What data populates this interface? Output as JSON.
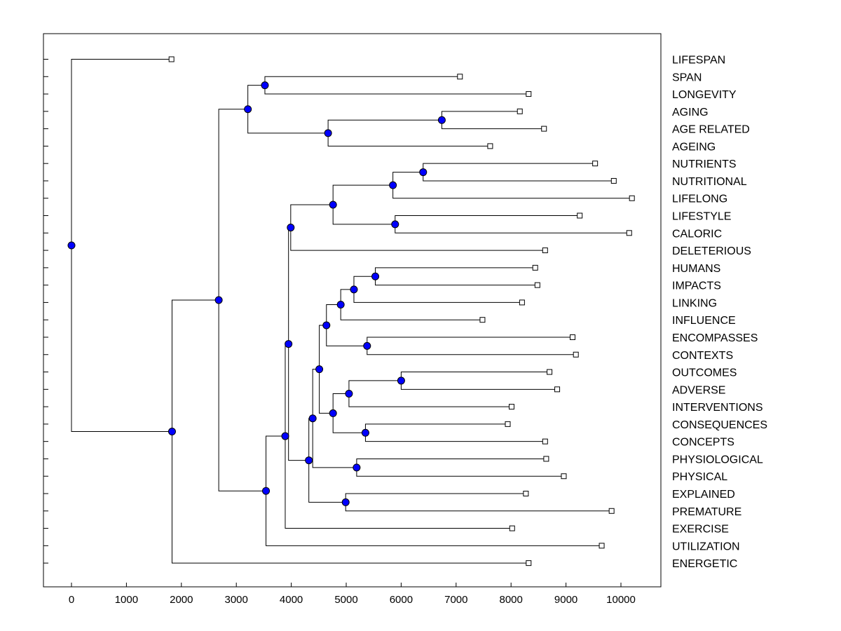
{
  "chart_data": {
    "type": "dendrogram",
    "title": "",
    "xlabel": "",
    "ylabel": "",
    "xlim": [
      -500,
      10700
    ],
    "xticks": [
      0,
      1000,
      2000,
      3000,
      4000,
      5000,
      6000,
      7000,
      8000,
      9000,
      10000
    ],
    "leaves": [
      {
        "label": "LIFESPAN",
        "value": 1820
      },
      {
        "label": "SPAN",
        "value": 7070
      },
      {
        "label": "LONGEVITY",
        "value": 8320
      },
      {
        "label": "AGING",
        "value": 8160
      },
      {
        "label": "AGE RELATED",
        "value": 8600
      },
      {
        "label": "AGEING",
        "value": 7620
      },
      {
        "label": "NUTRIENTS",
        "value": 9530
      },
      {
        "label": "NUTRITIONAL",
        "value": 9870
      },
      {
        "label": "LIFELONG",
        "value": 10200
      },
      {
        "label": "LIFESTYLE",
        "value": 9250
      },
      {
        "label": "CALORIC",
        "value": 10150
      },
      {
        "label": "DELETERIOUS",
        "value": 8620
      },
      {
        "label": "HUMANS",
        "value": 8440
      },
      {
        "label": "IMPACTS",
        "value": 8480
      },
      {
        "label": "LINKING",
        "value": 8200
      },
      {
        "label": "INFLUENCE",
        "value": 7480
      },
      {
        "label": "ENCOMPASSES",
        "value": 9120
      },
      {
        "label": "CONTEXTS",
        "value": 9180
      },
      {
        "label": "OUTCOMES",
        "value": 8700
      },
      {
        "label": "ADVERSE",
        "value": 8840
      },
      {
        "label": "INTERVENTIONS",
        "value": 8010
      },
      {
        "label": "CONSEQUENCES",
        "value": 7940
      },
      {
        "label": "CONCEPTS",
        "value": 8620
      },
      {
        "label": "PHYSIOLOGICAL",
        "value": 8640
      },
      {
        "label": "PHYSICAL",
        "value": 8960
      },
      {
        "label": "EXPLAINED",
        "value": 8270
      },
      {
        "label": "PREMATURE",
        "value": 9830
      },
      {
        "label": "EXERCISE",
        "value": 8020
      },
      {
        "label": "UTILIZATION",
        "value": 9650
      },
      {
        "label": "ENERGETIC",
        "value": 8320
      }
    ],
    "merges": [
      {
        "id": "n1",
        "value": 0,
        "children": [
          "L0",
          "n2"
        ]
      },
      {
        "id": "n2",
        "value": 1830,
        "children": [
          "n3",
          "L29"
        ]
      },
      {
        "id": "n3",
        "value": 2680,
        "children": [
          "n4",
          "n9"
        ]
      },
      {
        "id": "n4",
        "value": 3210,
        "children": [
          "n5",
          "n6"
        ]
      },
      {
        "id": "n5",
        "value": 3520,
        "children": [
          "L1",
          "L2"
        ]
      },
      {
        "id": "n6",
        "value": 4670,
        "children": [
          "n7",
          "L5"
        ]
      },
      {
        "id": "n7",
        "value": 6740,
        "children": [
          "L3",
          "L4"
        ]
      },
      {
        "id": "n9",
        "value": 3540,
        "children": [
          "n10",
          "L28"
        ]
      },
      {
        "id": "n10",
        "value": 3890,
        "children": [
          "n11",
          "L27"
        ]
      },
      {
        "id": "n11",
        "value": 3950,
        "children": [
          "n12",
          "n20"
        ]
      },
      {
        "id": "n12",
        "value": 3990,
        "children": [
          "n13",
          "L11"
        ]
      },
      {
        "id": "n13",
        "value": 4760,
        "children": [
          "n14",
          "n16"
        ]
      },
      {
        "id": "n14",
        "value": 5850,
        "children": [
          "n15",
          "L8"
        ]
      },
      {
        "id": "n15",
        "value": 6400,
        "children": [
          "L6",
          "L7"
        ]
      },
      {
        "id": "n16",
        "value": 5890,
        "children": [
          "L9",
          "L10"
        ]
      },
      {
        "id": "n20",
        "value": 4320,
        "children": [
          "n21",
          "n31"
        ]
      },
      {
        "id": "n21",
        "value": 4390,
        "children": [
          "n22",
          "n29"
        ]
      },
      {
        "id": "n22",
        "value": 4510,
        "children": [
          "n23",
          "n27"
        ]
      },
      {
        "id": "n23",
        "value": 4640,
        "children": [
          "n24",
          "n26"
        ]
      },
      {
        "id": "n24",
        "value": 4900,
        "children": [
          "n25",
          "L15"
        ]
      },
      {
        "id": "n25",
        "value": 5140,
        "children": [
          "n30",
          "L14"
        ]
      },
      {
        "id": "n30",
        "value": 5530,
        "children": [
          "L12",
          "L13"
        ]
      },
      {
        "id": "n26",
        "value": 5380,
        "children": [
          "L16",
          "L17"
        ]
      },
      {
        "id": "n27",
        "value": 4760,
        "children": [
          "n28",
          "n32"
        ]
      },
      {
        "id": "n28",
        "value": 5050,
        "children": [
          "n33",
          "L20"
        ]
      },
      {
        "id": "n33",
        "value": 6000,
        "children": [
          "L18",
          "L19"
        ]
      },
      {
        "id": "n32",
        "value": 5350,
        "children": [
          "L21",
          "L22"
        ]
      },
      {
        "id": "n29",
        "value": 5190,
        "children": [
          "L23",
          "L24"
        ]
      },
      {
        "id": "n31",
        "value": 4990,
        "children": [
          "L25",
          "L26"
        ]
      }
    ],
    "colors": {
      "node_fill": "#0000ff",
      "leaf_fill": "#ffffff",
      "line": "#000000"
    }
  }
}
